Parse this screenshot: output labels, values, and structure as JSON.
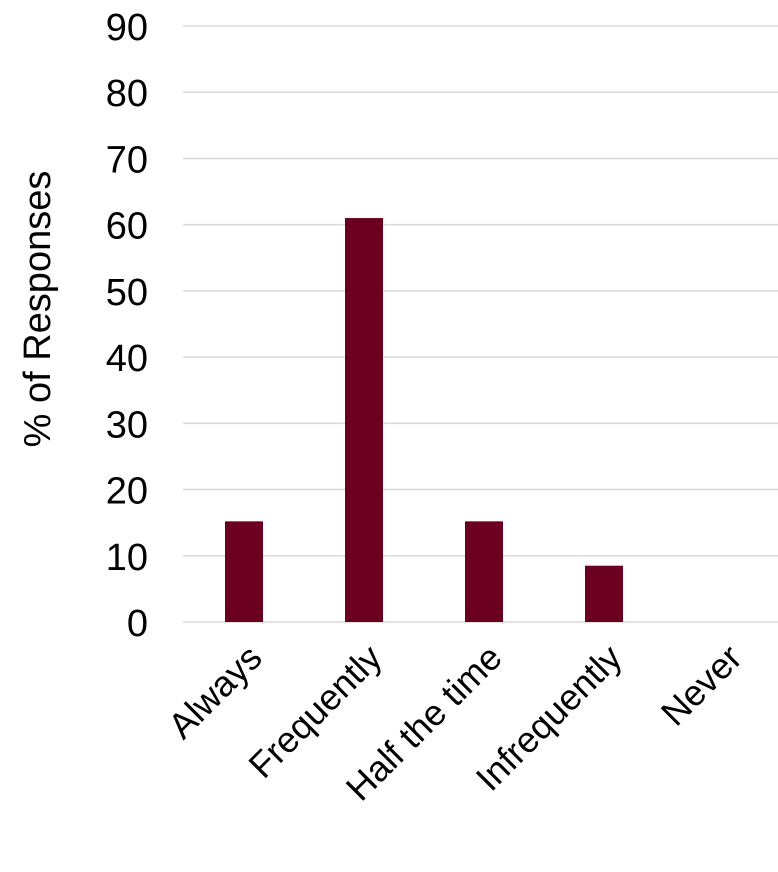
{
  "chart_data": {
    "type": "bar",
    "title": "",
    "xlabel": "",
    "ylabel": "% of Responses",
    "categories": [
      "Always",
      "Frequently",
      "Half the time",
      "Infrequently",
      "Never"
    ],
    "values": [
      15.2,
      61.0,
      15.2,
      8.5,
      0
    ],
    "ylim": [
      0,
      90
    ],
    "yticks": [
      0,
      10,
      20,
      30,
      40,
      50,
      60,
      70,
      80,
      90
    ],
    "grid": true,
    "legend": "none",
    "bar_color": "#6b0020",
    "grid_color": "#d9d9d9"
  }
}
